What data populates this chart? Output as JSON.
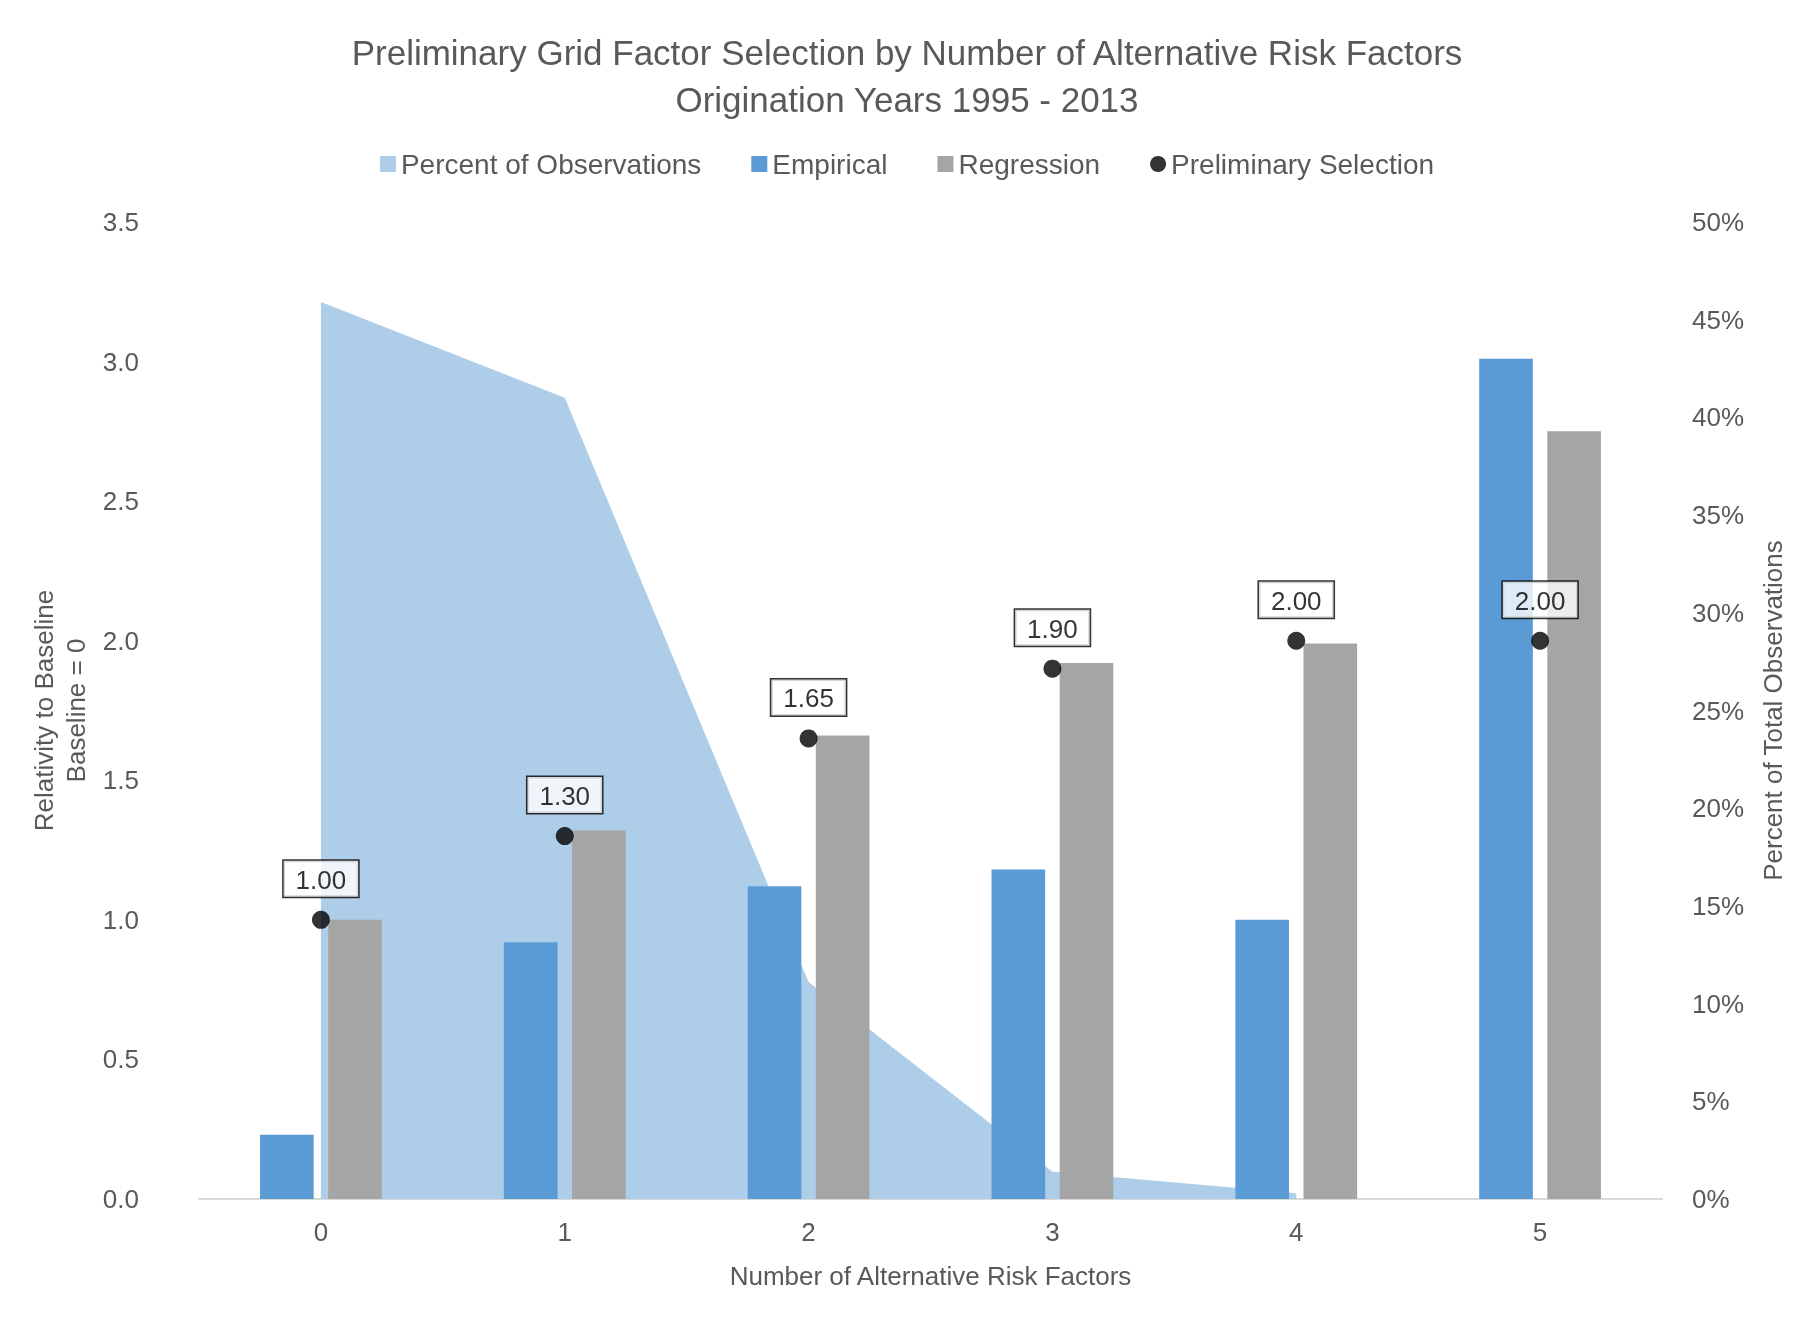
{
  "chart_data": {
    "type": "bar",
    "title": "Preliminary Grid Factor Selection by Number of Alternative Risk Factors",
    "subtitle": "Origination Years 1995 - 2013",
    "xlabel": "Number of Alternative Risk Factors",
    "ylabel": "Relativity to Baseline\nBaseline = 0",
    "y2label": "Percent of Total Observations",
    "categories": [
      "0",
      "1",
      "2",
      "3",
      "4",
      "5"
    ],
    "series": [
      {
        "name": "Percent of Observations",
        "type": "area",
        "axis": "y2",
        "color": "#aecde9",
        "values": [
          45.9,
          41.0,
          11.1,
          1.4,
          0.3,
          null
        ]
      },
      {
        "name": "Empirical",
        "color": "#5b9bd5",
        "values": [
          0.23,
          0.92,
          1.12,
          1.18,
          1.0,
          3.01
        ]
      },
      {
        "name": "Regression",
        "color": "#a5a5a5",
        "values": [
          1.0,
          1.32,
          1.66,
          1.92,
          1.99,
          2.75
        ]
      },
      {
        "name": "Preliminary Selection",
        "type": "scatter",
        "marker": "circle",
        "color": "#000000",
        "values": [
          1.0,
          1.3,
          1.65,
          1.9,
          2.0,
          2.0
        ],
        "value_labels": [
          "1.00",
          "1.30",
          "1.65",
          "1.90",
          "2.00",
          "2.00"
        ]
      }
    ],
    "ylim": [
      0,
      3.5
    ],
    "yticks": [
      {
        "value": 0,
        "label": "0.0"
      },
      {
        "value": 0.5,
        "label": "0.5"
      },
      {
        "value": 1,
        "label": "1.0"
      },
      {
        "value": 1.5,
        "label": "1.5"
      },
      {
        "value": 2,
        "label": "2.0"
      },
      {
        "value": 2.5,
        "label": "2.5"
      },
      {
        "value": 3,
        "label": "3.0"
      },
      {
        "value": 3.5,
        "label": "3.5"
      }
    ],
    "y2lim": [
      0,
      50
    ],
    "y2ticks": [
      {
        "value": 0,
        "label": "0%"
      },
      {
        "value": 5,
        "label": "5%"
      },
      {
        "value": 10,
        "label": "10%"
      },
      {
        "value": 15,
        "label": "15%"
      },
      {
        "value": 20,
        "label": "20%"
      },
      {
        "value": 25,
        "label": "25%"
      },
      {
        "value": 30,
        "label": "30%"
      },
      {
        "value": 35,
        "label": "35%"
      },
      {
        "value": 40,
        "label": "40%"
      },
      {
        "value": 45,
        "label": "45%"
      },
      {
        "value": 50,
        "label": "50%"
      }
    ],
    "legend": "top",
    "grid": false
  }
}
